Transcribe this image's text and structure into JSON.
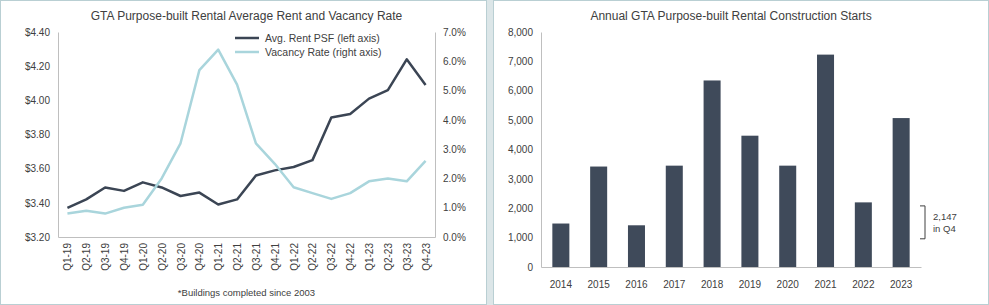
{
  "chart_data": [
    {
      "type": "line",
      "title": "GTA Purpose-built Rental Average Rent and Vacancy Rate",
      "footnote": "*Buildings completed since 2003",
      "categories": [
        "Q1-19",
        "Q2-19",
        "Q3-19",
        "Q4-19",
        "Q1-20",
        "Q2-20",
        "Q3-20",
        "Q4-20",
        "Q1-21",
        "Q2-21",
        "Q3-21",
        "Q4-21",
        "Q1-22",
        "Q2-22",
        "Q3-22",
        "Q4-22",
        "Q1-23",
        "Q2-23",
        "Q3-23",
        "Q4-23"
      ],
      "series": [
        {
          "name": "Avg. Rent PSF (left axis)",
          "color": "#3b4554",
          "values": [
            3.37,
            3.42,
            3.49,
            3.47,
            3.52,
            3.49,
            3.44,
            3.46,
            3.39,
            3.42,
            3.56,
            3.59,
            3.61,
            3.65,
            3.9,
            3.92,
            4.01,
            4.06,
            4.24,
            4.09
          ]
        },
        {
          "name": "Vacancy Rate (right axis)",
          "color": "#a9d5dc",
          "axis": "y2",
          "values": [
            0.8,
            0.9,
            0.8,
            1.0,
            1.1,
            2.0,
            3.2,
            5.7,
            6.4,
            5.2,
            3.2,
            2.5,
            1.7,
            1.5,
            1.3,
            1.5,
            1.9,
            2.0,
            1.9,
            2.6
          ]
        }
      ],
      "ylim": [
        3.2,
        4.4
      ],
      "yticks": [
        {
          "value": 3.2,
          "label": "$3.20"
        },
        {
          "value": 3.4,
          "label": "$3.40"
        },
        {
          "value": 3.6,
          "label": "$3.60"
        },
        {
          "value": 3.8,
          "label": "$3.80"
        },
        {
          "value": 4.0,
          "label": "$4.00"
        },
        {
          "value": 4.2,
          "label": "$4.20"
        },
        {
          "value": 4.4,
          "label": "$4.40"
        }
      ],
      "y2lim": [
        0,
        7
      ],
      "y2ticks": [
        {
          "value": 0,
          "label": "0.0%"
        },
        {
          "value": 1,
          "label": "1.0%"
        },
        {
          "value": 2,
          "label": "2.0%"
        },
        {
          "value": 3,
          "label": "3.0%"
        },
        {
          "value": 4,
          "label": "4.0%"
        },
        {
          "value": 5,
          "label": "5.0%"
        },
        {
          "value": 6,
          "label": "6.0%"
        },
        {
          "value": 7,
          "label": "7.0%"
        }
      ],
      "legend": "upper right",
      "grid": false
    },
    {
      "type": "bar",
      "title": "Annual GTA Purpose-built Rental Construction Starts",
      "categories": [
        "2014",
        "2015",
        "2016",
        "2017",
        "2018",
        "2019",
        "2020",
        "2021",
        "2022",
        "2023"
      ],
      "values": [
        1480,
        3420,
        1420,
        3450,
        6350,
        4470,
        3450,
        7230,
        2200,
        5070
      ],
      "color": "#3f4a5a",
      "ylim": [
        0,
        8000
      ],
      "yticks": [
        0,
        {
          "value": 1000,
          "label": "1,000"
        },
        {
          "value": 2000,
          "label": "2,000"
        },
        {
          "value": 3000,
          "label": "3,000"
        },
        {
          "value": 4000,
          "label": "4,000"
        },
        {
          "value": 5000,
          "label": "5,000"
        },
        {
          "value": 6000,
          "label": "6,000"
        },
        {
          "value": 7000,
          "label": "7,000"
        },
        {
          "value": 8000,
          "label": "8,000"
        }
      ],
      "annotation": [
        "2,147",
        "in Q4"
      ],
      "grid": false
    }
  ]
}
